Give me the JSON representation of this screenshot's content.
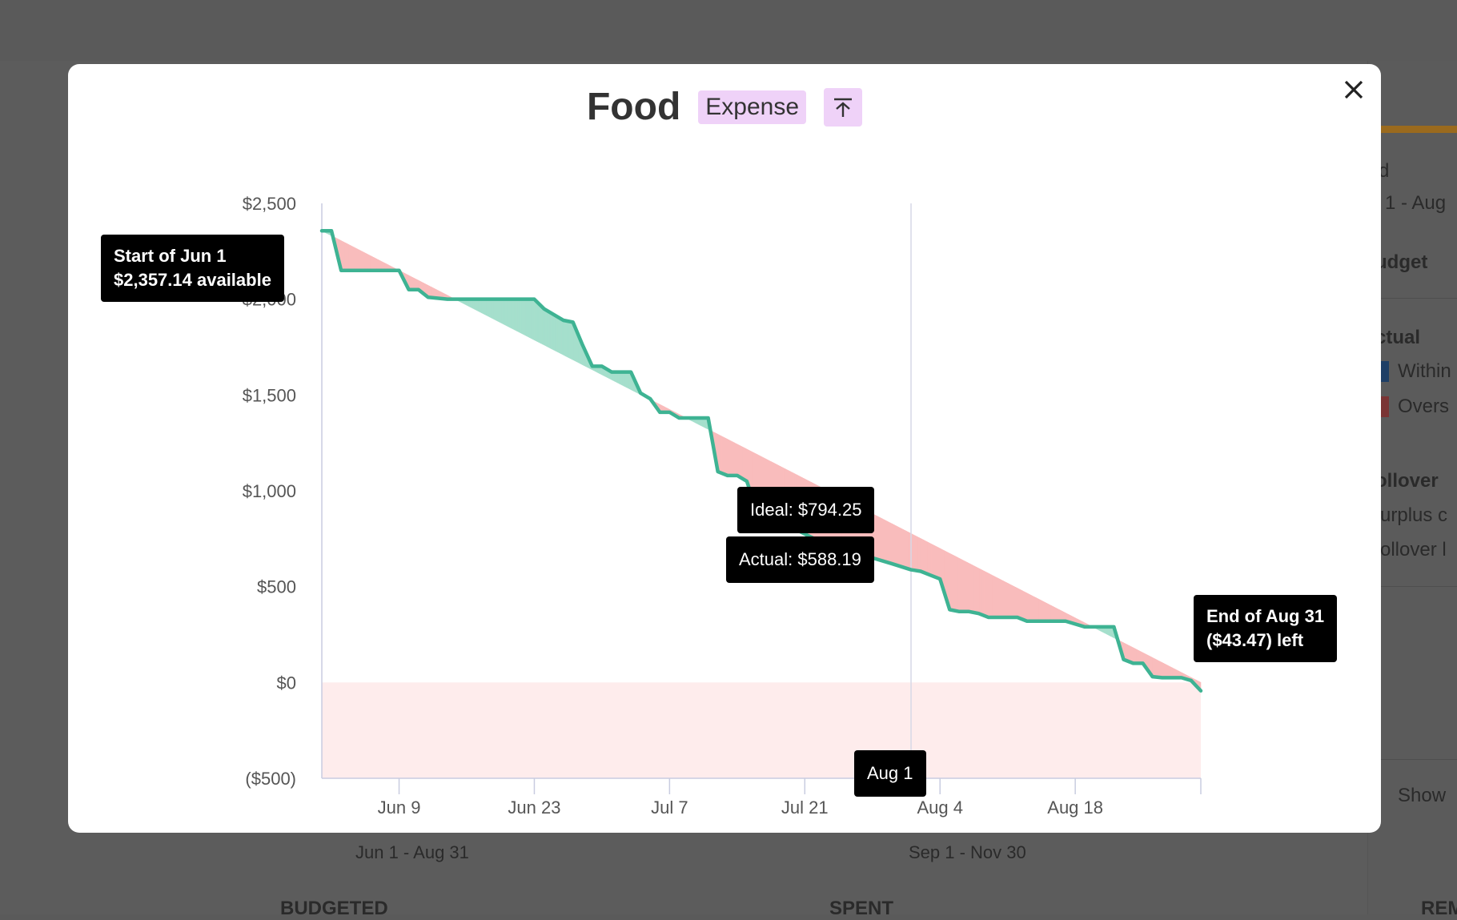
{
  "modal": {
    "title": "Food",
    "badge": "Expense",
    "pin_icon": "arrow-to-top-icon",
    "close_icon": "close-icon"
  },
  "tooltips": {
    "start_line1": "Start of Jun 1",
    "start_line2": "$2,357.14 available",
    "end_line1": "End of Aug 31",
    "end_line2": "($43.47) left",
    "ideal": "Ideal: $794.25",
    "actual": "Actual: $588.19",
    "hover_date": "Aug 1"
  },
  "background": {
    "panel_lines": [
      "d",
      "1 - Aug",
      "udget",
      "ctual",
      "Within",
      "Overs",
      "ollover",
      "urplus c",
      "ollover l",
      "Show"
    ],
    "period_labels": [
      "Jun 1 - Aug 31",
      "Sep 1 - Nov 30"
    ],
    "column_headers": [
      "BUDGETED",
      "SPENT",
      "REM"
    ]
  },
  "colors": {
    "actual_line": "#3eb393",
    "under_fill": "#a5dfcc",
    "over_fill": "#f9bcbc",
    "negative_zone": "#feecec",
    "badge_bg": "#efd2f8"
  },
  "chart_data": {
    "type": "line",
    "title": "",
    "xlabel": "",
    "ylabel": "",
    "x_range": [
      "Jun 1",
      "Aug 31"
    ],
    "ylim": [
      -500,
      2500
    ],
    "y_ticks": [
      2500,
      2000,
      1500,
      1000,
      500,
      0,
      -500
    ],
    "y_tick_labels": [
      "$2,500",
      "$2,000",
      "$1,500",
      "$1,000",
      "$500",
      "$0",
      "($500)"
    ],
    "x_ticks": [
      {
        "date": "Jun 9",
        "label": "Jun 9"
      },
      {
        "date": "Jun 23",
        "label": "Jun 23"
      },
      {
        "date": "Jul 7",
        "label": "Jul 7"
      },
      {
        "date": "Jul 21",
        "label": "Jul 21"
      },
      {
        "date": "Aug 4",
        "label": "Aug 4"
      },
      {
        "date": "Aug 18",
        "label": "Aug 18"
      }
    ],
    "grid": false,
    "ideal": {
      "start": {
        "x": "Jun 1",
        "y": 2357.14
      },
      "end": {
        "x": "Aug 31",
        "y": 0
      }
    },
    "highlight_date": "Aug 1",
    "series": [
      {
        "points": [
          [
            "Jun 1",
            2357
          ],
          [
            "Jun 2",
            2357
          ],
          [
            "Jun 3",
            2150
          ],
          [
            "Jun 5",
            2150
          ],
          [
            "Jun 7",
            2150
          ],
          [
            "Jun 9",
            2150
          ],
          [
            "Jun 10",
            2050
          ],
          [
            "Jun 11",
            2050
          ],
          [
            "Jun 12",
            2010
          ],
          [
            "Jun 14",
            2000
          ],
          [
            "Jun 19",
            2000
          ],
          [
            "Jun 23",
            2000
          ],
          [
            "Jun 24",
            1950
          ],
          [
            "Jun 25",
            1920
          ],
          [
            "Jun 26",
            1890
          ],
          [
            "Jun 27",
            1880
          ],
          [
            "Jun 28",
            1760
          ],
          [
            "Jun 29",
            1650
          ],
          [
            "Jun 30",
            1650
          ],
          [
            "Jul 1",
            1620
          ],
          [
            "Jul 3",
            1620
          ],
          [
            "Jul 4",
            1510
          ],
          [
            "Jul 5",
            1480
          ],
          [
            "Jul 6",
            1410
          ],
          [
            "Jul 7",
            1410
          ],
          [
            "Jul 8",
            1380
          ],
          [
            "Jul 10",
            1380
          ],
          [
            "Jul 11",
            1380
          ],
          [
            "Jul 12",
            1100
          ],
          [
            "Jul 13",
            1080
          ],
          [
            "Jul 14",
            1080
          ],
          [
            "Jul 15",
            1050
          ],
          [
            "Jul 16",
            900
          ],
          [
            "Jul 18",
            850
          ],
          [
            "Jul 20",
            800
          ],
          [
            "Jul 22",
            750
          ],
          [
            "Jul 25",
            700
          ],
          [
            "Jul 27",
            700
          ],
          [
            "Jul 28",
            650
          ],
          [
            "Jul 30",
            620
          ],
          [
            "Aug 1",
            588.19
          ],
          [
            "Aug 2",
            580
          ],
          [
            "Aug 3",
            560
          ],
          [
            "Aug 4",
            540
          ],
          [
            "Aug 5",
            380
          ],
          [
            "Aug 6",
            370
          ],
          [
            "Aug 7",
            370
          ],
          [
            "Aug 8",
            360
          ],
          [
            "Aug 9",
            340
          ],
          [
            "Aug 12",
            340
          ],
          [
            "Aug 13",
            320
          ],
          [
            "Aug 17",
            320
          ],
          [
            "Aug 19",
            290
          ],
          [
            "Aug 22",
            290
          ],
          [
            "Aug 23",
            120
          ],
          [
            "Aug 24",
            100
          ],
          [
            "Aug 25",
            100
          ],
          [
            "Aug 26",
            30
          ],
          [
            "Aug 27",
            25
          ],
          [
            "Aug 29",
            25
          ],
          [
            "Aug 30",
            10
          ],
          [
            "Aug 31",
            -43.47
          ]
        ]
      }
    ]
  }
}
